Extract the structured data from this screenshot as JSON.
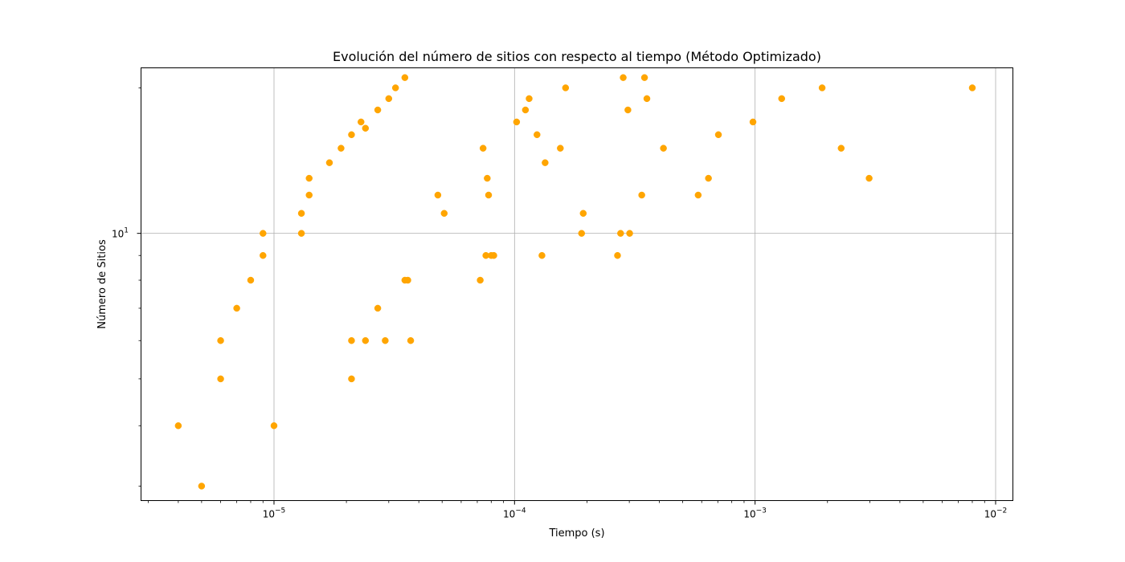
{
  "chart_data": {
    "type": "scatter",
    "title": "Evolución del número de sitios con respecto al tiempo (Método Optimizado)",
    "xlabel": "Tiempo (s)",
    "ylabel": "Número de Sitios",
    "x_scale": "log",
    "y_scale": "log",
    "xlim": [
      2.8e-06,
      0.0118
    ],
    "ylim": [
      2.8,
      22
    ],
    "x_major_ticks": [
      {
        "value": 1e-05,
        "base": "10",
        "exp": "−5"
      },
      {
        "value": 0.0001,
        "base": "10",
        "exp": "−4"
      },
      {
        "value": 0.001,
        "base": "10",
        "exp": "−3"
      },
      {
        "value": 0.01,
        "base": "10",
        "exp": "−2"
      }
    ],
    "y_major_ticks": [
      {
        "value": 10,
        "base": "10",
        "exp": "1"
      }
    ],
    "grid": true,
    "marker_color": "#FFA500",
    "series": [
      {
        "x": [
          4e-06,
          5e-06,
          6e-06,
          6e-06,
          7e-06,
          8e-06,
          9e-06,
          9e-06,
          1e-05,
          1.3e-05,
          1.3e-05,
          1.4e-05,
          1.4e-05,
          1.7e-05,
          1.9e-05,
          2.1e-05,
          2.1e-05,
          2.1e-05,
          2.3e-05,
          2.4e-05,
          2.4e-05,
          2.7e-05,
          2.7e-05,
          2.9e-05,
          3e-05,
          3.2e-05,
          3.5e-05,
          3.5e-05,
          3.6e-05,
          3.7e-05,
          4.8e-05,
          5.1e-05,
          7.2e-05,
          7.4e-05,
          7.6e-05,
          7.7e-05,
          7.8e-05,
          8e-05,
          8.2e-05,
          0.000102,
          0.000111,
          0.000115,
          0.000124,
          0.00013,
          0.000134,
          0.000155,
          0.000163,
          0.00019,
          0.000193,
          0.000268,
          0.000276,
          0.000283,
          0.000296,
          0.000301,
          0.000338,
          0.000347,
          0.000355,
          0.000416,
          0.00058,
          0.00064,
          0.000704,
          0.00098,
          0.00129,
          0.0019,
          0.00228,
          0.00298,
          0.008
        ],
        "y": [
          4,
          3,
          5,
          6,
          7,
          8,
          9,
          10,
          4,
          10,
          11,
          12,
          13,
          14,
          15,
          16,
          5,
          6,
          17,
          6,
          16.5,
          7,
          18,
          6,
          19,
          20,
          8,
          21,
          8,
          6,
          12,
          11,
          8,
          15,
          9,
          13,
          12,
          9,
          9,
          17,
          18,
          19,
          16,
          9,
          14,
          15,
          20,
          10,
          11,
          9,
          10,
          21,
          18,
          10,
          12,
          21,
          19,
          15,
          12,
          13,
          16,
          17,
          19,
          20,
          15,
          13,
          20
        ]
      }
    ]
  }
}
